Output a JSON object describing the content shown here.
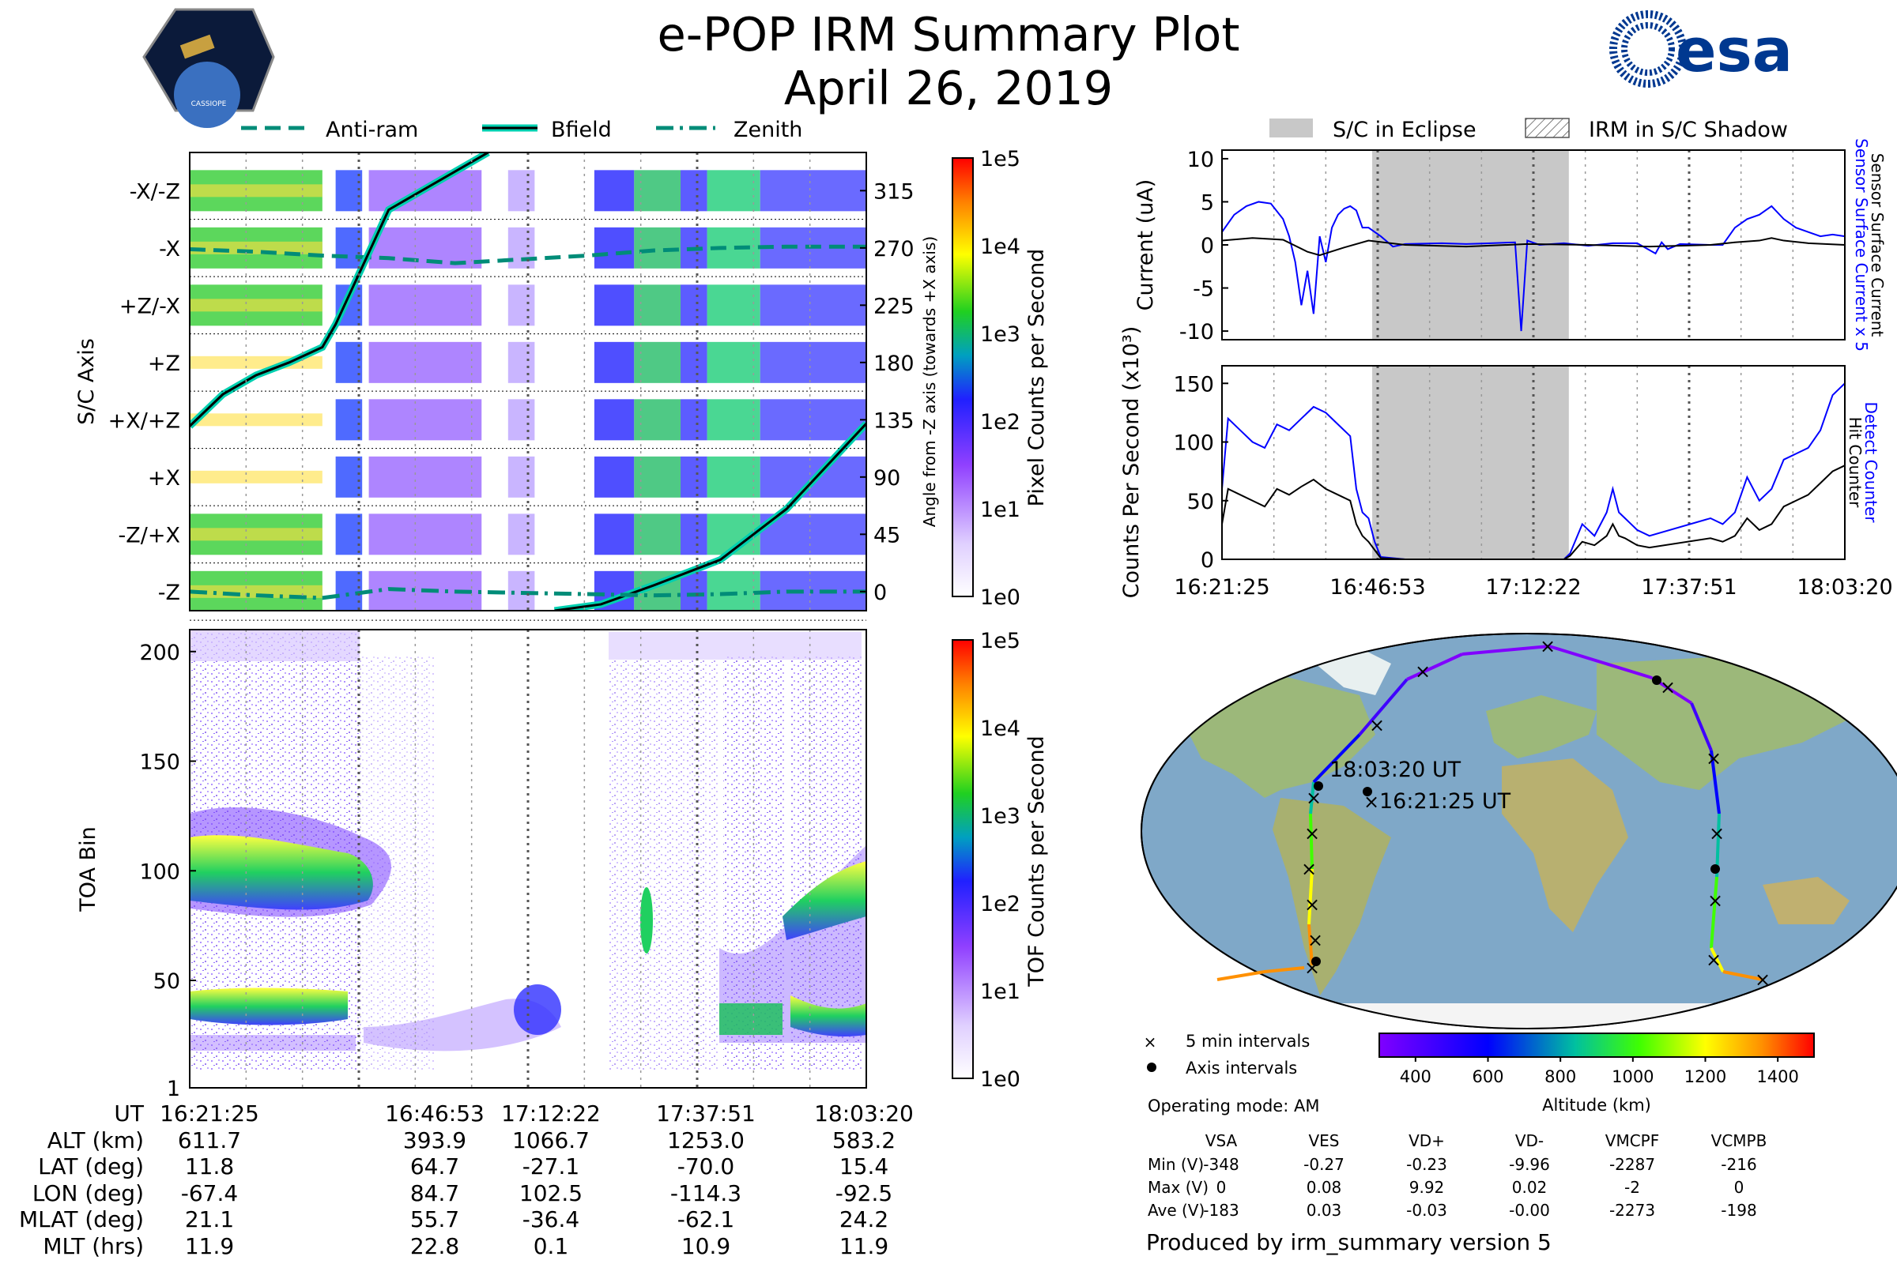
{
  "title": "e-POP IRM Summary Plot",
  "date": "April 26, 2019",
  "logos": {
    "cassiope": "CASSIOPE",
    "esa": "esa"
  },
  "top_legend": [
    "Anti-ram",
    "Bfield",
    "Zenith"
  ],
  "chart_data": [
    {
      "id": "pixel_spectrogram",
      "type": "heatmap",
      "ylabel": "S/C Axis",
      "y2label": "Angle from -Z axis (towards +X axis)",
      "ytick_labels": [
        "-X/-Z",
        "-X",
        "+Z/-X",
        "+Z",
        "+X/+Z",
        "+X",
        "-Z/+X",
        "-Z"
      ],
      "y2_ticks": [
        315,
        270,
        225,
        180,
        135,
        90,
        45,
        0
      ],
      "y2lim": [
        -15,
        345
      ],
      "xticks": [
        "16:21:25",
        "16:46:53",
        "17:12:22",
        "17:37:51",
        "18:03:20"
      ],
      "colorbar": {
        "label": "Pixel Counts per Second",
        "ticks": [
          "1e0",
          "1e1",
          "1e2",
          "1e3",
          "1e4",
          "1e5"
        ]
      },
      "series": [
        {
          "name": "Anti-ram",
          "style": "dashed",
          "x": [
            0,
            10,
            20,
            30,
            40,
            50,
            60,
            70,
            80,
            90,
            102
          ],
          "y": [
            269,
            267,
            264,
            262,
            258,
            261,
            264,
            268,
            270,
            271,
            271
          ]
        },
        {
          "name": "Bfield",
          "style": "solid",
          "x": [
            0,
            5,
            10,
            15,
            20,
            22,
            26,
            30,
            45,
            55,
            62,
            70,
            80,
            90,
            102
          ],
          "y": [
            130,
            155,
            170,
            180,
            192,
            210,
            255,
            300,
            345,
            -15,
            -10,
            5,
            25,
            65,
            132
          ]
        },
        {
          "name": "Zenith",
          "style": "dashdot",
          "x": [
            0,
            10,
            20,
            30,
            40,
            50,
            60,
            70,
            80,
            90,
            102
          ],
          "y": [
            0,
            -3,
            -5,
            2,
            0,
            -1,
            -2,
            -3,
            -2,
            0,
            0
          ]
        }
      ]
    },
    {
      "id": "tof_spectrogram",
      "type": "heatmap",
      "ylabel": "TOA Bin",
      "yticks": [
        1,
        50,
        100,
        150,
        200
      ],
      "ylim": [
        1,
        210
      ],
      "xticks": [
        "16:21:25",
        "16:46:53",
        "17:12:22",
        "17:37:51",
        "18:03:20"
      ],
      "colorbar": {
        "label": "TOF Counts per Second",
        "ticks": [
          "1e0",
          "1e1",
          "1e2",
          "1e3",
          "1e4",
          "1e5"
        ]
      }
    },
    {
      "id": "current",
      "type": "line",
      "ylabel": "Current (uA)",
      "yticks": [
        10,
        5,
        0,
        -5,
        -10
      ],
      "ylim": [
        -11,
        11
      ],
      "eclipse_span": [
        24.6,
        56.8
      ],
      "legend": [
        "S/C in Eclipse",
        "IRM in S/C Shadow"
      ],
      "right_labels": [
        "Sensor Surface Current x 5",
        "Sensor Surface Current"
      ],
      "series": [
        {
          "name": "Sensor Surface Current x 5",
          "color": "#0000ff",
          "x": [
            0,
            2,
            4,
            6,
            8,
            10,
            11,
            12,
            13,
            14,
            15,
            16,
            17,
            18,
            19,
            20,
            21,
            22,
            23,
            24,
            26,
            28,
            30,
            36,
            40,
            44,
            48,
            49,
            50,
            52,
            56,
            60,
            64,
            68,
            71,
            72,
            73,
            75,
            80,
            82,
            84,
            86,
            88,
            90,
            92,
            94,
            96,
            98,
            100,
            102
          ],
          "y": [
            1.5,
            3.5,
            4.5,
            5,
            4.8,
            3,
            1,
            -2,
            -7,
            -3,
            -8,
            1,
            -2,
            2,
            3.5,
            4.2,
            4.5,
            4,
            2,
            2,
            1,
            -0.2,
            0.1,
            0.2,
            0.1,
            0.2,
            0.3,
            -10,
            0.5,
            0,
            0.2,
            -0.1,
            0.2,
            0.2,
            -1,
            0.3,
            -0.5,
            0.1,
            0,
            0,
            2,
            3,
            3.5,
            4.5,
            3,
            2,
            1.5,
            1,
            1.2,
            1
          ]
        },
        {
          "name": "Sensor Surface Current",
          "color": "#000000",
          "x": [
            0,
            5,
            10,
            14,
            16,
            20,
            24,
            30,
            40,
            50,
            60,
            70,
            80,
            84,
            88,
            90,
            92,
            96,
            102
          ],
          "y": [
            0.5,
            0.8,
            0.6,
            -0.8,
            -1.2,
            -0.3,
            0.5,
            0,
            -0.2,
            0.1,
            0,
            -0.2,
            0,
            0.3,
            0.5,
            0.8,
            0.5,
            0.2,
            0
          ]
        }
      ]
    },
    {
      "id": "counts",
      "type": "line",
      "ylabel": "Counts Per Second (x10³)",
      "yticks": [
        150,
        100,
        50,
        0
      ],
      "ylim": [
        0,
        165
      ],
      "eclipse_span": [
        24.6,
        56.8
      ],
      "xticks": [
        "16:21:25",
        "16:46:53",
        "17:12:22",
        "17:37:51",
        "18:03:20"
      ],
      "right_labels": [
        "Detect Counter",
        "Hit Counter"
      ],
      "series": [
        {
          "name": "Detect Counter",
          "color": "#0000ff",
          "x": [
            0,
            1,
            3,
            5,
            7,
            9,
            11,
            13,
            15,
            17,
            19,
            21,
            22,
            23,
            24,
            25,
            26,
            30,
            40,
            50,
            56,
            57,
            59,
            61,
            63,
            64,
            65,
            66,
            67,
            68,
            70,
            80,
            82,
            84,
            86,
            88,
            90,
            92,
            94,
            96,
            98,
            100,
            102
          ],
          "y": [
            60,
            120,
            110,
            100,
            95,
            115,
            110,
            120,
            130,
            125,
            115,
            105,
            60,
            40,
            35,
            15,
            2,
            0,
            0,
            0,
            0,
            5,
            30,
            20,
            40,
            60,
            40,
            35,
            30,
            25,
            20,
            35,
            30,
            40,
            70,
            50,
            60,
            85,
            90,
            95,
            110,
            140,
            150
          ]
        },
        {
          "name": "Hit Counter",
          "color": "#000000",
          "x": [
            0,
            1,
            3,
            5,
            7,
            9,
            11,
            13,
            15,
            17,
            19,
            21,
            22,
            23,
            24,
            25,
            26,
            30,
            40,
            50,
            56,
            57,
            59,
            61,
            63,
            64,
            65,
            66,
            67,
            68,
            70,
            80,
            82,
            84,
            86,
            88,
            90,
            92,
            94,
            96,
            98,
            100,
            102
          ],
          "y": [
            30,
            60,
            55,
            50,
            45,
            60,
            55,
            62,
            68,
            60,
            55,
            50,
            30,
            20,
            15,
            8,
            1,
            0,
            0,
            0,
            0,
            3,
            15,
            12,
            20,
            30,
            20,
            18,
            15,
            12,
            10,
            18,
            15,
            20,
            35,
            25,
            30,
            45,
            50,
            55,
            65,
            75,
            80
          ]
        }
      ]
    },
    {
      "id": "ground_track",
      "type": "map",
      "labels": {
        "start": "16:21:25 UT",
        "end": "18:03:20 UT"
      },
      "legend": [
        "5 min intervals",
        "Axis intervals"
      ],
      "colorbar": {
        "label": "Altitude (km)",
        "ticks": [
          400,
          600,
          800,
          1000,
          1200,
          1400
        ],
        "range": [
          300,
          1500
        ]
      }
    }
  ],
  "bottom_table": {
    "row_labels": [
      "UT",
      "ALT (km)",
      "LAT (deg)",
      "LON (deg)",
      "MLAT (deg)",
      "MLT (hrs)"
    ],
    "columns": [
      [
        "16:21:25",
        "611.7",
        "11.8",
        "-67.4",
        "21.1",
        "11.9"
      ],
      [
        "16:46:53",
        "393.9",
        "64.7",
        "84.7",
        "55.7",
        "22.8"
      ],
      [
        "17:12:22",
        "1066.7",
        "-27.1",
        "102.5",
        "-36.4",
        "0.1"
      ],
      [
        "17:37:51",
        "1253.0",
        "-70.0",
        "-114.3",
        "-62.1",
        "10.9"
      ],
      [
        "18:03:20",
        "583.2",
        "15.4",
        "-92.5",
        "24.2",
        "11.9"
      ]
    ]
  },
  "operating_mode": "Operating mode: AM",
  "voltage_table": {
    "headers": [
      "VSA",
      "VES",
      "VD+",
      "VD-",
      "VMCPF",
      "VCMPB"
    ],
    "rows": [
      {
        "label": "Min (V)",
        "values": [
          "-348",
          "-0.27",
          "-0.23",
          "-9.96",
          "-2287",
          "-216"
        ]
      },
      {
        "label": "Max (V)",
        "values": [
          "0",
          "0.08",
          "9.92",
          "0.02",
          "-2",
          "0"
        ]
      },
      {
        "label": "Ave (V)",
        "values": [
          "-183",
          "0.03",
          "-0.03",
          "-0.00",
          "-2273",
          "-198"
        ]
      }
    ]
  },
  "footer": "Produced by irm_summary version 5",
  "colors": {
    "eclipse": "#c8c8c8",
    "blue": "#0000ff",
    "track_line": "#7f3fbf",
    "cyan": "#00c8a8",
    "ocean": "#7fa8c8",
    "land": "#9cb87a"
  }
}
